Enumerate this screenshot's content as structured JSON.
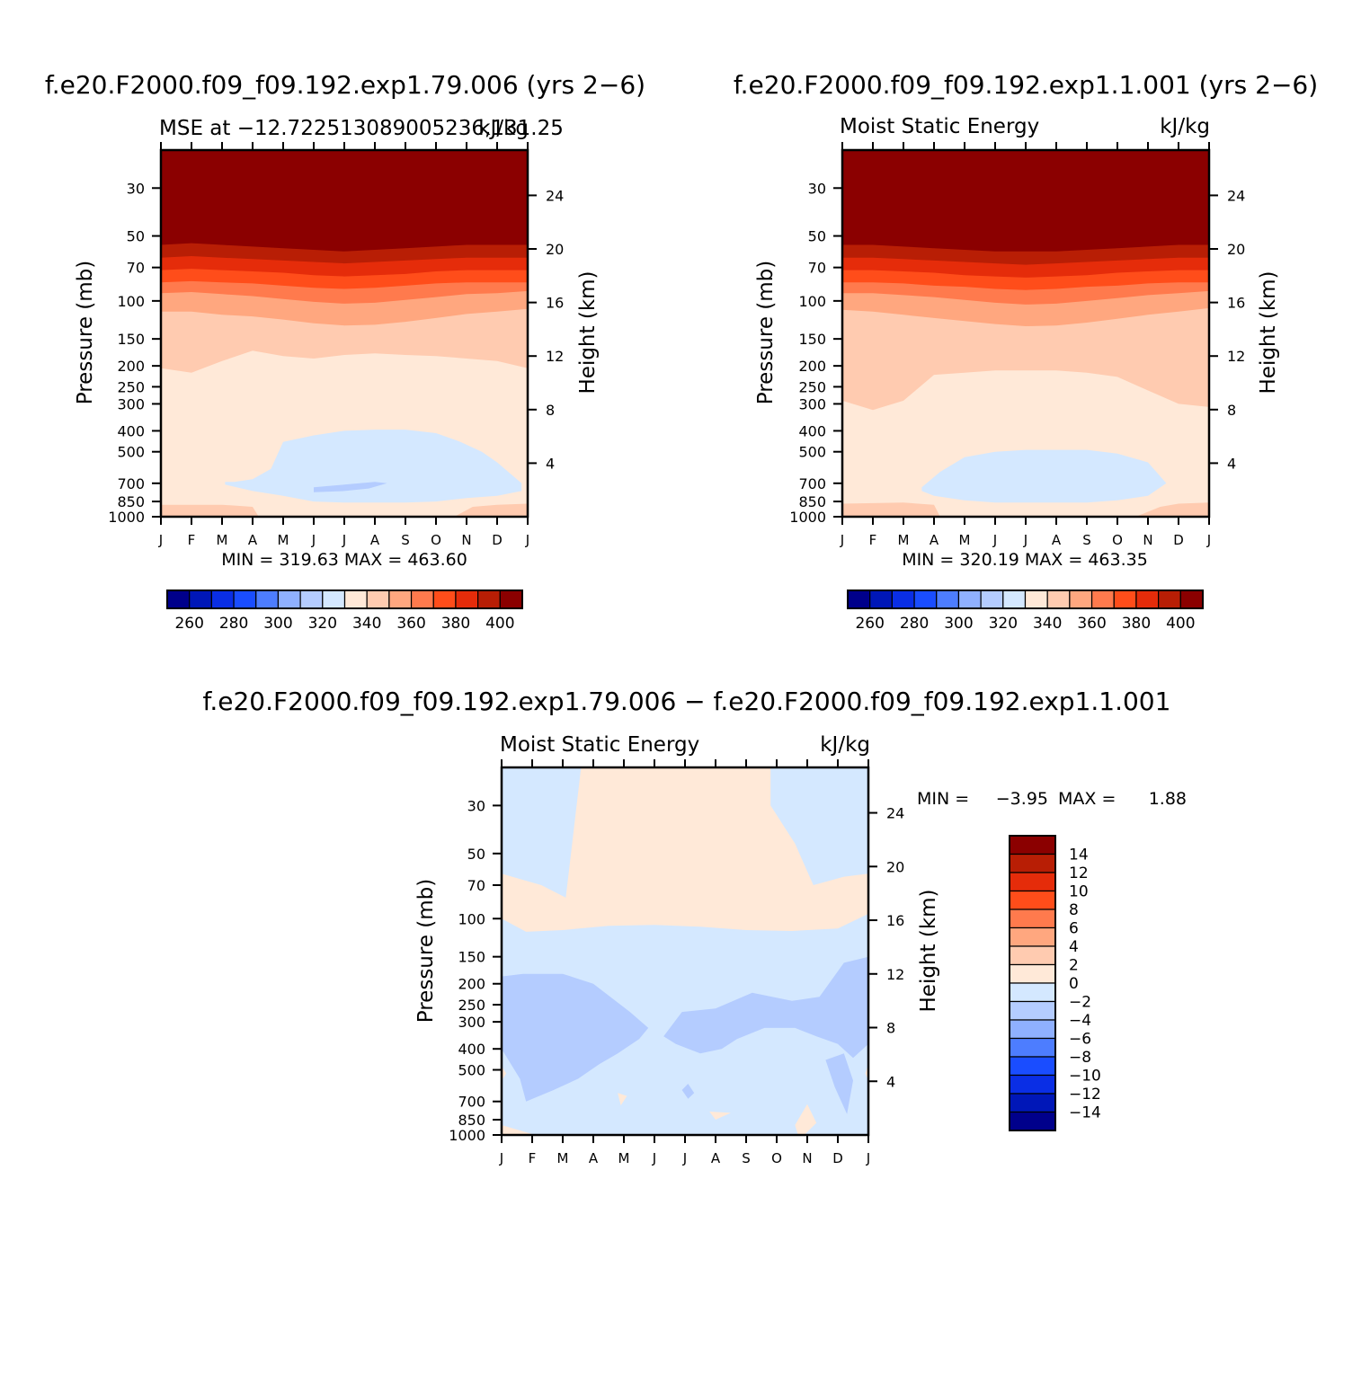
{
  "colors": {
    "warm": [
      "#ffe9d8",
      "#ffcbb0",
      "#ffa77f",
      "#ff7a4d",
      "#ff4d1a",
      "#e52c0a",
      "#b81e05",
      "#8b0000"
    ],
    "cool": [
      "#d4e8ff",
      "#b4ccff",
      "#8fb0ff",
      "#4d7dff",
      "#1a4dff",
      "#0a2ee5",
      "#0017b8",
      "#00008b"
    ]
  },
  "chart_data": [
    {
      "type": "heatmap",
      "panel": "top-left",
      "title": "f.e20.F2000.f09_f09.192.exp1.79.006 (yrs 2−6)",
      "subtitle_left": "MSE at −12.722513089005236,131.25",
      "subtitle_right": "kJ/kg",
      "ylabel": "Pressure (mb)",
      "y2label": "Height (km)",
      "stats": "MIN = 319.63 MAX = 463.60",
      "x_ticks": [
        "J",
        "F",
        "M",
        "A",
        "M",
        "J",
        "J",
        "A",
        "S",
        "O",
        "N",
        "D",
        "J"
      ],
      "y_ticks": [
        30,
        50,
        70,
        100,
        150,
        200,
        250,
        300,
        400,
        500,
        700,
        850,
        1000
      ],
      "y2_ticks": [
        24,
        20,
        16,
        12,
        8,
        4
      ],
      "ylim": [
        1000,
        20
      ],
      "y_scale": "log",
      "contour_levels_legend": [
        "260",
        "280",
        "300",
        "320",
        "340",
        "360",
        "380",
        "400"
      ],
      "band_boundaries": [
        {
          "p": [
            55,
            54,
            55,
            56,
            57,
            58,
            59,
            58,
            57,
            56,
            55,
            55,
            55
          ],
          "level": 400
        },
        {
          "p": [
            63,
            62,
            63,
            64,
            65,
            66,
            67,
            66,
            65,
            64,
            63,
            63,
            63
          ],
          "level": 390
        },
        {
          "p": [
            72,
            71,
            72,
            73,
            74,
            76,
            77,
            76,
            75,
            73,
            72,
            72,
            72
          ],
          "level": 380
        },
        {
          "p": [
            82,
            81,
            82,
            83,
            85,
            87,
            88,
            87,
            85,
            83,
            82,
            82,
            82
          ],
          "level": 370
        },
        {
          "p": [
            92,
            91,
            93,
            95,
            98,
            101,
            103,
            102,
            99,
            96,
            93,
            92,
            90
          ],
          "level": 360
        },
        {
          "p": [
            112,
            112,
            116,
            118,
            122,
            127,
            130,
            129,
            125,
            120,
            115,
            112,
            109
          ],
          "level": 350
        },
        {
          "p": [
            205,
            215,
            190,
            170,
            180,
            185,
            178,
            175,
            178,
            180,
            185,
            190,
            205
          ],
          "level": 340
        }
      ],
      "blue_region": {
        "x": [
          2.1,
          2.4,
          3.0,
          3.6,
          4.0,
          5.0,
          6.0,
          7.0,
          8.0,
          9.0,
          9.8,
          10.5,
          11.0,
          11.8,
          11.8,
          11.0,
          10.0,
          9.0,
          8.0,
          7.0,
          6.0,
          5.0,
          4.0,
          3.0,
          2.1
        ],
        "p": [
          690,
          690,
          670,
          600,
          450,
          420,
          400,
          395,
          395,
          410,
          450,
          500,
          560,
          700,
          760,
          800,
          820,
          850,
          860,
          860,
          860,
          850,
          800,
          760,
          710
        ]
      },
      "blue2_region": {
        "x": [
          5.0,
          5.5,
          6.0,
          7.0,
          7.4,
          6.8,
          6.0,
          5.0
        ],
        "p": [
          730,
          720,
          710,
          690,
          700,
          740,
          760,
          770
        ]
      },
      "bottom_region": {
        "x": [
          0,
          2,
          3,
          3.2,
          0
        ],
        "p": [
          880,
          880,
          900,
          1000,
          1000
        ]
      },
      "bottom_region2": {
        "x": [
          9.6,
          10.2,
          11,
          12,
          12,
          9.6
        ],
        "p": [
          1000,
          900,
          880,
          870,
          1000,
          1000
        ]
      }
    },
    {
      "type": "heatmap",
      "panel": "top-right",
      "title": "f.e20.F2000.f09_f09.192.exp1.1.001 (yrs 2−6)",
      "subtitle_left": "Moist Static Energy",
      "subtitle_right": "kJ/kg",
      "ylabel": "Pressure (mb)",
      "y2label": "Height (km)",
      "stats": "MIN = 320.19 MAX = 463.35",
      "x_ticks": [
        "J",
        "F",
        "M",
        "A",
        "M",
        "J",
        "J",
        "A",
        "S",
        "O",
        "N",
        "D",
        "J"
      ],
      "y_ticks": [
        30,
        50,
        70,
        100,
        150,
        200,
        250,
        300,
        400,
        500,
        700,
        850,
        1000
      ],
      "y2_ticks": [
        24,
        20,
        16,
        12,
        8,
        4
      ],
      "ylim": [
        1000,
        20
      ],
      "y_scale": "log",
      "contour_levels_legend": [
        "260",
        "280",
        "300",
        "320",
        "340",
        "360",
        "380",
        "400"
      ],
      "band_boundaries": [
        {
          "p": [
            55,
            55,
            56,
            57,
            58,
            59,
            59,
            59,
            58,
            57,
            56,
            55,
            55
          ],
          "level": 400
        },
        {
          "p": [
            63,
            63,
            64,
            65,
            66,
            67,
            68,
            67,
            66,
            65,
            64,
            63,
            63
          ],
          "level": 390
        },
        {
          "p": [
            72,
            72,
            73,
            74,
            76,
            77,
            78,
            77,
            76,
            74,
            73,
            72,
            72
          ],
          "level": 380
        },
        {
          "p": [
            82,
            82,
            83,
            85,
            86,
            88,
            89,
            88,
            86,
            85,
            83,
            82,
            82
          ],
          "level": 370
        },
        {
          "p": [
            92,
            92,
            94,
            96,
            99,
            102,
            104,
            103,
            100,
            97,
            94,
            92,
            90
          ],
          "level": 360
        },
        {
          "p": [
            110,
            112,
            116,
            120,
            124,
            128,
            131,
            130,
            126,
            121,
            116,
            112,
            108
          ],
          "level": 350
        },
        {
          "p": [
            290,
            320,
            290,
            220,
            215,
            210,
            210,
            210,
            215,
            225,
            260,
            300,
            310
          ],
          "level": 340
        }
      ],
      "blue_region": {
        "x": [
          2.6,
          3.2,
          4.0,
          5.0,
          6.0,
          7.0,
          8.0,
          9.0,
          10.0,
          10.6,
          10.0,
          9.0,
          8.0,
          7.0,
          6.0,
          5.0,
          4.0,
          3.0,
          2.6
        ],
        "p": [
          730,
          620,
          530,
          500,
          490,
          490,
          490,
          510,
          560,
          700,
          800,
          840,
          860,
          860,
          860,
          860,
          840,
          800,
          760
        ]
      },
      "bottom_region": {
        "x": [
          0,
          2,
          3,
          3.2,
          0
        ],
        "p": [
          870,
          860,
          880,
          1000,
          1000
        ]
      },
      "bottom_region2": {
        "x": [
          9.6,
          10.4,
          11,
          12,
          12,
          9.6
        ],
        "p": [
          1000,
          900,
          870,
          860,
          1000,
          1000
        ]
      }
    },
    {
      "type": "heatmap",
      "panel": "bottom",
      "title": "f.e20.F2000.f09_f09.192.exp1.79.006 − f.e20.F2000.f09_f09.192.exp1.1.001",
      "subtitle_left": "Moist Static Energy",
      "subtitle_right": "kJ/kg",
      "ylabel": "Pressure (mb)",
      "y2label": "Height (km)",
      "stats_min_label": "MIN =",
      "stats_min": "−3.95",
      "stats_max_label": "MAX =",
      "stats_max": "1.88",
      "x_ticks": [
        "J",
        "F",
        "M",
        "A",
        "M",
        "J",
        "J",
        "A",
        "S",
        "O",
        "N",
        "D",
        "J"
      ],
      "y_ticks": [
        30,
        50,
        70,
        100,
        150,
        200,
        250,
        300,
        400,
        500,
        700,
        850,
        1000
      ],
      "y2_ticks": [
        24,
        20,
        16,
        12,
        8,
        4
      ],
      "ylim": [
        1000,
        20
      ],
      "y_scale": "log",
      "contour_levels_legend": [
        "14",
        "12",
        "10",
        "8",
        "6",
        "4",
        "2",
        "0",
        "−2",
        "−4",
        "−6",
        "−8",
        "−10",
        "−12",
        "−14"
      ]
    }
  ]
}
